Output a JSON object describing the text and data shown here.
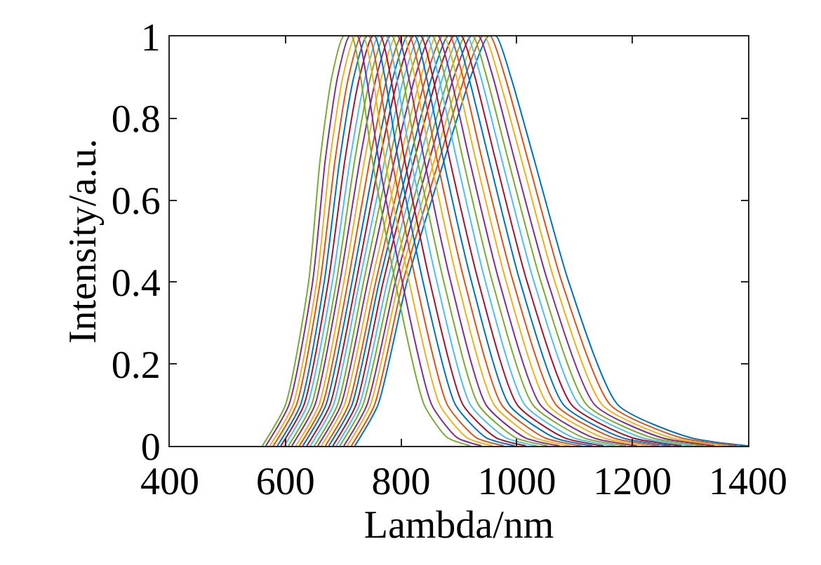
{
  "chart_data": {
    "type": "line",
    "xlabel": "Lambda/nm",
    "ylabel": "Intensity/a.u.",
    "xlim": [
      400,
      1400
    ],
    "xticks": [
      400,
      600,
      800,
      1000,
      1200,
      1400
    ],
    "ylim": [
      0,
      1
    ],
    "yticks": [
      0,
      0.2,
      0.4,
      0.6,
      0.8,
      1
    ],
    "marker": "none",
    "line_style": "solid",
    "series": [
      {
        "color": "#0072bd",
        "x": [
          720,
          760,
          810,
          875,
          920,
          950,
          965,
          990,
          1030,
          1090,
          1175,
          1300,
          1400
        ],
        "values": [
          0,
          0.1,
          0.4,
          0.7,
          0.9,
          1,
          1,
          0.9,
          0.7,
          0.4,
          0.1,
          0.02,
          0
        ]
      },
      {
        "color": "#d95319",
        "x": [
          714,
          754,
          803,
          866,
          910,
          940,
          955,
          980,
          1019,
          1078,
          1162,
          1283,
          1381
        ],
        "values": [
          0,
          0.1,
          0.4,
          0.7,
          0.9,
          1,
          1,
          0.9,
          0.7,
          0.4,
          0.1,
          0.02,
          0
        ]
      },
      {
        "color": "#edb120",
        "x": [
          707,
          747,
          796,
          858,
          901,
          930,
          945,
          969,
          1008,
          1066,
          1148,
          1266,
          1362
        ],
        "values": [
          0,
          0.1,
          0.4,
          0.7,
          0.9,
          1,
          1,
          0.9,
          0.7,
          0.4,
          0.1,
          0.02,
          0
        ]
      },
      {
        "color": "#7e2f8e",
        "x": [
          701,
          741,
          790,
          849,
          891,
          920,
          935,
          959,
          996,
          1054,
          1135,
          1250,
          1342
        ],
        "values": [
          0,
          0.1,
          0.4,
          0.7,
          0.9,
          1,
          1,
          0.9,
          0.7,
          0.4,
          0.1,
          0.02,
          0
        ]
      },
      {
        "color": "#77ac30",
        "x": [
          694,
          734,
          783,
          841,
          882,
          910,
          925,
          948,
          985,
          1042,
          1121,
          1233,
          1323
        ],
        "values": [
          0,
          0.1,
          0.4,
          0.7,
          0.9,
          1,
          1,
          0.9,
          0.7,
          0.4,
          0.1,
          0.02,
          0
        ]
      },
      {
        "color": "#4dbeee",
        "x": [
          688,
          728,
          776,
          832,
          872,
          900,
          915,
          938,
          974,
          1030,
          1108,
          1216,
          1304
        ],
        "values": [
          0,
          0.1,
          0.4,
          0.7,
          0.9,
          1,
          1,
          0.9,
          0.7,
          0.4,
          0.1,
          0.02,
          0
        ]
      },
      {
        "color": "#a2142f",
        "x": [
          682,
          722,
          769,
          823,
          862,
          890,
          905,
          928,
          963,
          1018,
          1095,
          1199,
          1285
        ],
        "values": [
          0,
          0.1,
          0.4,
          0.7,
          0.9,
          1,
          1,
          0.9,
          0.7,
          0.4,
          0.1,
          0.02,
          0
        ]
      },
      {
        "color": "#0072bd",
        "x": [
          675,
          715,
          762,
          815,
          853,
          880,
          895,
          917,
          952,
          1006,
          1081,
          1182,
          1266
        ],
        "values": [
          0,
          0.1,
          0.4,
          0.7,
          0.9,
          1,
          1,
          0.9,
          0.7,
          0.4,
          0.1,
          0.02,
          0
        ]
      },
      {
        "color": "#d95319",
        "x": [
          669,
          709,
          756,
          806,
          843,
          870,
          885,
          907,
          940,
          994,
          1068,
          1166,
          1246
        ],
        "values": [
          0,
          0.1,
          0.4,
          0.7,
          0.9,
          1,
          1,
          0.9,
          0.7,
          0.4,
          0.1,
          0.02,
          0
        ]
      },
      {
        "color": "#edb120",
        "x": [
          662,
          702,
          749,
          798,
          834,
          860,
          875,
          896,
          929,
          982,
          1054,
          1149,
          1227
        ],
        "values": [
          0,
          0.1,
          0.4,
          0.7,
          0.9,
          1,
          1,
          0.9,
          0.7,
          0.4,
          0.1,
          0.02,
          0
        ]
      },
      {
        "color": "#7e2f8e",
        "x": [
          656,
          696,
          742,
          789,
          824,
          850,
          865,
          886,
          918,
          970,
          1041,
          1132,
          1208
        ],
        "values": [
          0,
          0.1,
          0.4,
          0.7,
          0.9,
          1,
          1,
          0.9,
          0.7,
          0.4,
          0.1,
          0.02,
          0
        ]
      },
      {
        "color": "#77ac30",
        "x": [
          650,
          690,
          735,
          780,
          814,
          840,
          855,
          876,
          907,
          958,
          1028,
          1115,
          1189
        ],
        "values": [
          0,
          0.1,
          0.4,
          0.7,
          0.9,
          1,
          1,
          0.9,
          0.7,
          0.4,
          0.1,
          0.02,
          0
        ]
      },
      {
        "color": "#4dbeee",
        "x": [
          643,
          683,
          728,
          772,
          805,
          830,
          845,
          865,
          896,
          946,
          1014,
          1098,
          1170
        ],
        "values": [
          0,
          0.1,
          0.4,
          0.7,
          0.9,
          1,
          1,
          0.9,
          0.7,
          0.4,
          0.1,
          0.02,
          0
        ]
      },
      {
        "color": "#a2142f",
        "x": [
          637,
          677,
          722,
          763,
          795,
          820,
          835,
          855,
          884,
          934,
          1001,
          1082,
          1150
        ],
        "values": [
          0,
          0.1,
          0.4,
          0.7,
          0.9,
          1,
          1,
          0.9,
          0.7,
          0.4,
          0.1,
          0.02,
          0
        ]
      },
      {
        "color": "#0072bd",
        "x": [
          630,
          670,
          715,
          755,
          786,
          810,
          825,
          844,
          873,
          922,
          987,
          1065,
          1131
        ],
        "values": [
          0,
          0.1,
          0.4,
          0.7,
          0.9,
          1,
          1,
          0.9,
          0.7,
          0.4,
          0.1,
          0.02,
          0
        ]
      },
      {
        "color": "#d95319",
        "x": [
          624,
          664,
          708,
          746,
          776,
          800,
          815,
          834,
          862,
          910,
          974,
          1048,
          1112
        ],
        "values": [
          0,
          0.1,
          0.4,
          0.7,
          0.9,
          1,
          1,
          0.9,
          0.7,
          0.4,
          0.1,
          0.02,
          0
        ]
      },
      {
        "color": "#edb120",
        "x": [
          618,
          658,
          701,
          737,
          766,
          790,
          805,
          824,
          851,
          898,
          961,
          1031,
          1093
        ],
        "values": [
          0,
          0.1,
          0.4,
          0.7,
          0.9,
          1,
          1,
          0.9,
          0.7,
          0.4,
          0.1,
          0.02,
          0
        ]
      },
      {
        "color": "#7e2f8e",
        "x": [
          611,
          651,
          694,
          729,
          757,
          780,
          795,
          813,
          840,
          886,
          947,
          1014,
          1074
        ],
        "values": [
          0,
          0.1,
          0.4,
          0.7,
          0.9,
          1,
          1,
          0.9,
          0.7,
          0.4,
          0.1,
          0.02,
          0
        ]
      },
      {
        "color": "#77ac30",
        "x": [
          605,
          645,
          688,
          720,
          747,
          770,
          785,
          803,
          828,
          874,
          934,
          998,
          1054
        ],
        "values": [
          0,
          0.1,
          0.4,
          0.7,
          0.9,
          1,
          1,
          0.9,
          0.7,
          0.4,
          0.1,
          0.02,
          0
        ]
      },
      {
        "color": "#4dbeee",
        "x": [
          598,
          638,
          681,
          712,
          738,
          760,
          775,
          792,
          817,
          862,
          920,
          981,
          1035
        ],
        "values": [
          0,
          0.1,
          0.4,
          0.7,
          0.9,
          1,
          1,
          0.9,
          0.7,
          0.4,
          0.1,
          0.02,
          0
        ]
      },
      {
        "color": "#a2142f",
        "x": [
          592,
          632,
          674,
          703,
          728,
          750,
          765,
          782,
          806,
          850,
          907,
          964,
          1016
        ],
        "values": [
          0,
          0.1,
          0.4,
          0.7,
          0.9,
          1,
          1,
          0.9,
          0.7,
          0.4,
          0.1,
          0.02,
          0
        ]
      },
      {
        "color": "#0072bd",
        "x": [
          586,
          626,
          667,
          694,
          718,
          740,
          755,
          772,
          795,
          838,
          894,
          947,
          997
        ],
        "values": [
          0,
          0.1,
          0.4,
          0.7,
          0.9,
          1,
          1,
          0.9,
          0.7,
          0.4,
          0.1,
          0.02,
          0
        ]
      },
      {
        "color": "#d95319",
        "x": [
          579,
          619,
          660,
          686,
          709,
          730,
          745,
          761,
          784,
          826,
          880,
          930,
          978
        ],
        "values": [
          0,
          0.1,
          0.4,
          0.7,
          0.9,
          1,
          1,
          0.9,
          0.7,
          0.4,
          0.1,
          0.02,
          0
        ]
      },
      {
        "color": "#edb120",
        "x": [
          573,
          613,
          654,
          677,
          699,
          720,
          735,
          751,
          772,
          814,
          867,
          914,
          958
        ],
        "values": [
          0,
          0.1,
          0.4,
          0.7,
          0.9,
          1,
          1,
          0.9,
          0.7,
          0.4,
          0.1,
          0.02,
          0
        ]
      },
      {
        "color": "#7e2f8e",
        "x": [
          566,
          606,
          647,
          669,
          690,
          710,
          725,
          740,
          761,
          802,
          853,
          897,
          939
        ],
        "values": [
          0,
          0.1,
          0.4,
          0.7,
          0.9,
          1,
          1,
          0.9,
          0.7,
          0.4,
          0.1,
          0.02,
          0
        ]
      },
      {
        "color": "#77ac30",
        "x": [
          560,
          600,
          640,
          660,
          680,
          700,
          715,
          730,
          750,
          790,
          840,
          880,
          920
        ],
        "values": [
          0,
          0.1,
          0.4,
          0.7,
          0.9,
          1,
          1,
          0.9,
          0.7,
          0.4,
          0.1,
          0.02,
          0
        ]
      }
    ]
  }
}
